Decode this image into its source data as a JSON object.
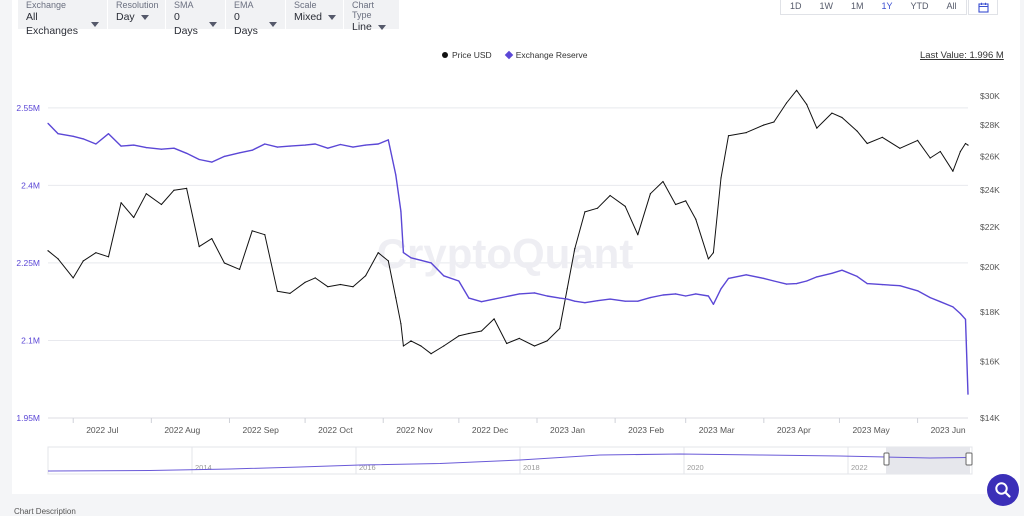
{
  "toolbar": {
    "controls": [
      {
        "label": "Exchange",
        "value": "All Exchanges"
      },
      {
        "label": "Resolution",
        "value": "Day"
      },
      {
        "label": "SMA",
        "value": "0 Days"
      },
      {
        "label": "EMA",
        "value": "0 Days"
      },
      {
        "label": "Scale",
        "value": "Mixed"
      },
      {
        "label": "Chart Type",
        "value": "Line"
      }
    ],
    "ranges": [
      "1D",
      "1W",
      "1M",
      "1Y",
      "YTD",
      "All"
    ],
    "active_range": "1Y"
  },
  "legend": {
    "price": "Price USD",
    "reserve": "Exchange Reserve"
  },
  "last_value": "Last Value: 1.996 M",
  "watermark": "CryptoQuant",
  "bottom_text": "Chart Description",
  "colors": {
    "price": "#111111",
    "reserve": "#5b47d6",
    "accent": "#3b4fd1",
    "fab": "#3b2fb8"
  },
  "chart_data": {
    "type": "line",
    "x": [
      "2022-06-21",
      "2022-06-25",
      "2022-07-01",
      "2022-07-05",
      "2022-07-10",
      "2022-07-15",
      "2022-07-20",
      "2022-07-25",
      "2022-07-30",
      "2022-08-05",
      "2022-08-10",
      "2022-08-15",
      "2022-08-20",
      "2022-08-25",
      "2022-08-30",
      "2022-09-05",
      "2022-09-10",
      "2022-09-15",
      "2022-09-20",
      "2022-09-25",
      "2022-10-01",
      "2022-10-05",
      "2022-10-10",
      "2022-10-15",
      "2022-10-20",
      "2022-10-25",
      "2022-10-30",
      "2022-11-03",
      "2022-11-06",
      "2022-11-08",
      "2022-11-09",
      "2022-11-12",
      "2022-11-16",
      "2022-11-20",
      "2022-11-25",
      "2022-12-01",
      "2022-12-05",
      "2022-12-10",
      "2022-12-15",
      "2022-12-20",
      "2022-12-25",
      "2022-12-31",
      "2023-01-05",
      "2023-01-10",
      "2023-01-13",
      "2023-01-16",
      "2023-01-20",
      "2023-01-25",
      "2023-01-30",
      "2023-02-05",
      "2023-02-10",
      "2023-02-15",
      "2023-02-20",
      "2023-02-25",
      "2023-03-01",
      "2023-03-05",
      "2023-03-10",
      "2023-03-12",
      "2023-03-15",
      "2023-03-18",
      "2023-03-25",
      "2023-04-01",
      "2023-04-05",
      "2023-04-10",
      "2023-04-14",
      "2023-04-18",
      "2023-04-22",
      "2023-04-28",
      "2023-05-02",
      "2023-05-08",
      "2023-05-12",
      "2023-05-18",
      "2023-05-25",
      "2023-06-01",
      "2023-06-06",
      "2023-06-10",
      "2023-06-15",
      "2023-06-18",
      "2023-06-20",
      "2023-06-21"
    ],
    "series": [
      {
        "name": "Price USD",
        "axis": "right",
        "values": [
          20800,
          20400,
          19500,
          20300,
          20700,
          20500,
          23300,
          22500,
          23800,
          23200,
          24000,
          24100,
          21000,
          21400,
          20200,
          19900,
          21800,
          21600,
          18900,
          18800,
          19300,
          19500,
          19100,
          19200,
          19100,
          19600,
          20700,
          20300,
          18600,
          17500,
          16600,
          16800,
          16600,
          16300,
          16600,
          17000,
          17100,
          17200,
          17700,
          16700,
          16900,
          16600,
          16800,
          17300,
          19000,
          20900,
          22800,
          23000,
          23700,
          23100,
          21600,
          23800,
          24500,
          23200,
          23400,
          22400,
          20400,
          20700,
          24700,
          27300,
          27500,
          28000,
          28200,
          29500,
          30400,
          29400,
          27800,
          28800,
          28500,
          27600,
          26800,
          27200,
          26500,
          27000,
          25900,
          26300,
          25100,
          26300,
          26800,
          26700
        ]
      },
      {
        "name": "Exchange Reserve",
        "axis": "left",
        "values": [
          2520000,
          2500000,
          2495000,
          2490000,
          2480000,
          2500000,
          2476000,
          2478000,
          2473000,
          2470000,
          2472000,
          2462000,
          2450000,
          2445000,
          2456000,
          2463000,
          2468000,
          2480000,
          2474000,
          2476000,
          2478000,
          2480000,
          2472000,
          2479000,
          2474000,
          2478000,
          2480000,
          2488000,
          2420000,
          2350000,
          2270000,
          2260000,
          2255000,
          2250000,
          2225000,
          2215000,
          2182000,
          2175000,
          2180000,
          2185000,
          2190000,
          2192000,
          2186000,
          2182000,
          2180000,
          2176000,
          2173000,
          2177000,
          2180000,
          2176000,
          2176000,
          2183000,
          2188000,
          2190000,
          2186000,
          2190000,
          2186000,
          2170000,
          2200000,
          2220000,
          2227000,
          2220000,
          2215000,
          2209000,
          2210000,
          2215000,
          2223000,
          2230000,
          2236000,
          2224000,
          2210000,
          2208000,
          2206000,
          2196000,
          2183000,
          2175000,
          2165000,
          2152000,
          2141000,
          1996000
        ]
      }
    ],
    "y_left": {
      "ticks": [
        "1.95M",
        "2.1M",
        "2.25M",
        "2.4M",
        "2.55M"
      ],
      "range": [
        1950000,
        2600000
      ]
    },
    "y_right": {
      "ticks": [
        "$14K",
        "$16K",
        "$18K",
        "$20K",
        "$22K",
        "$24K",
        "$26K",
        "$28K",
        "$30K"
      ],
      "range": [
        14000,
        31000
      ],
      "scale": "log"
    },
    "x_ticks": [
      "2022 Jul",
      "2022 Aug",
      "2022 Sep",
      "2022 Oct",
      "2022 Nov",
      "2022 Dec",
      "2023 Jan",
      "2023 Feb",
      "2023 Mar",
      "2023 Apr",
      "2023 May",
      "2023 Jun"
    ],
    "navigator_ticks": [
      "2014",
      "2016",
      "2018",
      "2020",
      "2022"
    ],
    "grid": true
  }
}
